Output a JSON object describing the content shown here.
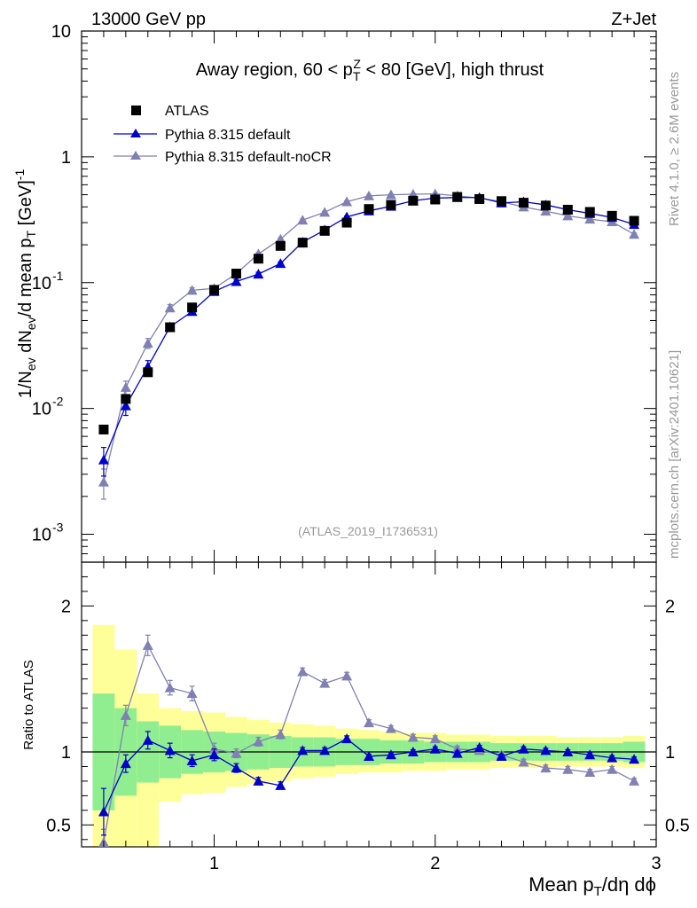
{
  "header": {
    "left": "13000 GeV pp",
    "right": "Z+Jet"
  },
  "side_labels": {
    "rivet": "Rivet 4.1.0, ≥ 2.6M events",
    "mcplots": "mcplots.cern.ch [arXiv:2401.10621]"
  },
  "colors": {
    "atlas": "#000000",
    "default": "#0000cc",
    "nocr": "#8080b3",
    "band_inner": "#90ee90",
    "band_outer": "#ffff99"
  },
  "chart_data": [
    {
      "type": "line",
      "panel": "main",
      "title": "Away region, 60 < p_T^Z < 80 [GeV], high thrust",
      "watermark": "(ATLAS_2019_I1736531)",
      "ylabel": "1/N_ev dN_ev/d mean p_T [GeV]^-1",
      "yscale": "log",
      "xlim": [
        0.4,
        3.0
      ],
      "ylim": [
        0.0006,
        10
      ],
      "ytick_labels": {
        "exp": [
          "10",
          "-3",
          "10",
          "-2",
          "10",
          "-1"
        ],
        "plain": [
          "1",
          "10"
        ]
      },
      "x": [
        0.5,
        0.6,
        0.7,
        0.8,
        0.9,
        1.0,
        1.1,
        1.2,
        1.3,
        1.4,
        1.5,
        1.6,
        1.7,
        1.8,
        1.9,
        2.0,
        2.1,
        2.2,
        2.3,
        2.4,
        2.5,
        2.6,
        2.7,
        2.8,
        2.9
      ],
      "series": [
        {
          "name": "ATLAS",
          "marker": "square",
          "values": [
            0.0068,
            0.0119,
            0.0194,
            0.0442,
            0.0635,
            0.0876,
            0.118,
            0.155,
            0.196,
            0.208,
            0.258,
            0.3,
            0.385,
            0.415,
            0.448,
            0.458,
            0.48,
            0.462,
            0.445,
            0.432,
            0.41,
            0.38,
            0.365,
            0.34,
            0.31
          ]
        },
        {
          "name": "Pythia 8.315 default",
          "marker": "triangle",
          "values": [
            0.0039,
            0.0105,
            0.0215,
            0.0445,
            0.059,
            0.085,
            0.102,
            0.117,
            0.142,
            0.21,
            0.262,
            0.333,
            0.372,
            0.405,
            0.448,
            0.47,
            0.475,
            0.475,
            0.43,
            0.44,
            0.415,
            0.38,
            0.355,
            0.33,
            0.29
          ],
          "errors": [
            0.001,
            0.0017,
            0.0025,
            0.003,
            0.003,
            0.004,
            0.004,
            0.004,
            0.004,
            0.005,
            0.005,
            0.006,
            0.006,
            0.006,
            0.006,
            0.006,
            0.006,
            0.006,
            0.006,
            0.006,
            0.006,
            0.006,
            0.006,
            0.006,
            0.006
          ]
        },
        {
          "name": "Pythia 8.315 default-noCR",
          "marker": "triangle",
          "values": [
            0.0026,
            0.0147,
            0.033,
            0.063,
            0.087,
            0.09,
            0.118,
            0.169,
            0.222,
            0.314,
            0.363,
            0.44,
            0.49,
            0.5,
            0.505,
            0.508,
            0.49,
            0.47,
            0.44,
            0.4,
            0.37,
            0.34,
            0.32,
            0.305,
            0.242
          ],
          "errors": [
            0.0007,
            0.0018,
            0.003,
            0.004,
            0.004,
            0.004,
            0.005,
            0.005,
            0.005,
            0.006,
            0.006,
            0.006,
            0.006,
            0.006,
            0.006,
            0.006,
            0.006,
            0.006,
            0.006,
            0.006,
            0.006,
            0.006,
            0.006,
            0.006,
            0.006
          ]
        }
      ]
    },
    {
      "type": "line",
      "panel": "ratio",
      "ylabel": "Ratio to ATLAS",
      "xlabel": "Mean p_T/dη dϕ",
      "xlim": [
        0.4,
        3.0
      ],
      "ylim": [
        0.35,
        2.3
      ],
      "xtick_labels": [
        "1",
        "2",
        "3"
      ],
      "ytick_labels": [
        "0.5",
        "1",
        "2"
      ],
      "x_edges": [
        0.45,
        0.55,
        0.65,
        0.75,
        0.85,
        0.95,
        1.05,
        1.15,
        1.25,
        1.35,
        1.45,
        1.55,
        1.65,
        1.75,
        1.85,
        1.95,
        2.05,
        2.15,
        2.25,
        2.35,
        2.45,
        2.55,
        2.65,
        2.75,
        2.85,
        2.95
      ],
      "band_inner": {
        "low": [
          0.6,
          0.7,
          0.79,
          0.82,
          0.85,
          0.86,
          0.87,
          0.88,
          0.89,
          0.9,
          0.9,
          0.91,
          0.91,
          0.92,
          0.92,
          0.93,
          0.93,
          0.93,
          0.94,
          0.94,
          0.94,
          0.94,
          0.94,
          0.94,
          0.93
        ],
        "high": [
          1.4,
          1.3,
          1.21,
          1.18,
          1.15,
          1.14,
          1.13,
          1.12,
          1.11,
          1.1,
          1.1,
          1.09,
          1.09,
          1.08,
          1.08,
          1.07,
          1.07,
          1.07,
          1.06,
          1.06,
          1.06,
          1.06,
          1.06,
          1.06,
          1.07
        ]
      },
      "band_outer": {
        "low": [
          0.35,
          0.35,
          0.35,
          0.66,
          0.71,
          0.72,
          0.76,
          0.78,
          0.8,
          0.82,
          0.83,
          0.85,
          0.86,
          0.86,
          0.87,
          0.87,
          0.88,
          0.88,
          0.89,
          0.89,
          0.89,
          0.9,
          0.9,
          0.9,
          0.89
        ],
        "high": [
          1.87,
          1.7,
          1.4,
          1.3,
          1.28,
          1.27,
          1.24,
          1.22,
          1.2,
          1.19,
          1.18,
          1.16,
          1.15,
          1.14,
          1.13,
          1.13,
          1.12,
          1.12,
          1.11,
          1.11,
          1.11,
          1.1,
          1.1,
          1.1,
          1.11
        ]
      },
      "x": [
        0.5,
        0.6,
        0.7,
        0.8,
        0.9,
        1.0,
        1.1,
        1.2,
        1.3,
        1.4,
        1.5,
        1.6,
        1.7,
        1.8,
        1.9,
        2.0,
        2.1,
        2.2,
        2.3,
        2.4,
        2.5,
        2.6,
        2.7,
        2.8,
        2.9
      ],
      "series": [
        {
          "name": "Pythia 8.315 default",
          "values": [
            0.59,
            0.92,
            1.08,
            1.01,
            0.94,
            0.98,
            0.89,
            0.8,
            0.77,
            1.01,
            1.01,
            1.09,
            0.97,
            0.98,
            1.0,
            1.02,
            0.99,
            1.03,
            0.97,
            1.02,
            1.01,
            1.0,
            0.98,
            0.96,
            0.95
          ],
          "errors": [
            0.16,
            0.06,
            0.06,
            0.05,
            0.04,
            0.04,
            0.03,
            0.025,
            0.025,
            0.02,
            0.02,
            0.02,
            0.015,
            0.015,
            0.015,
            0.015,
            0.015,
            0.015,
            0.015,
            0.015,
            0.015,
            0.015,
            0.015,
            0.015,
            0.015
          ]
        },
        {
          "name": "Pythia 8.315 default-noCR",
          "values": [
            0.38,
            1.25,
            1.73,
            1.44,
            1.4,
            1.02,
            0.99,
            1.07,
            1.12,
            1.55,
            1.47,
            1.52,
            1.2,
            1.16,
            1.1,
            1.09,
            1.02,
            1.01,
            0.98,
            0.93,
            0.89,
            0.88,
            0.86,
            0.88,
            0.8
          ],
          "errors": [
            0.09,
            0.07,
            0.07,
            0.05,
            0.05,
            0.04,
            0.03,
            0.03,
            0.03,
            0.025,
            0.025,
            0.025,
            0.02,
            0.02,
            0.02,
            0.02,
            0.02,
            0.02,
            0.02,
            0.02,
            0.02,
            0.02,
            0.02,
            0.02,
            0.02
          ]
        }
      ]
    }
  ]
}
